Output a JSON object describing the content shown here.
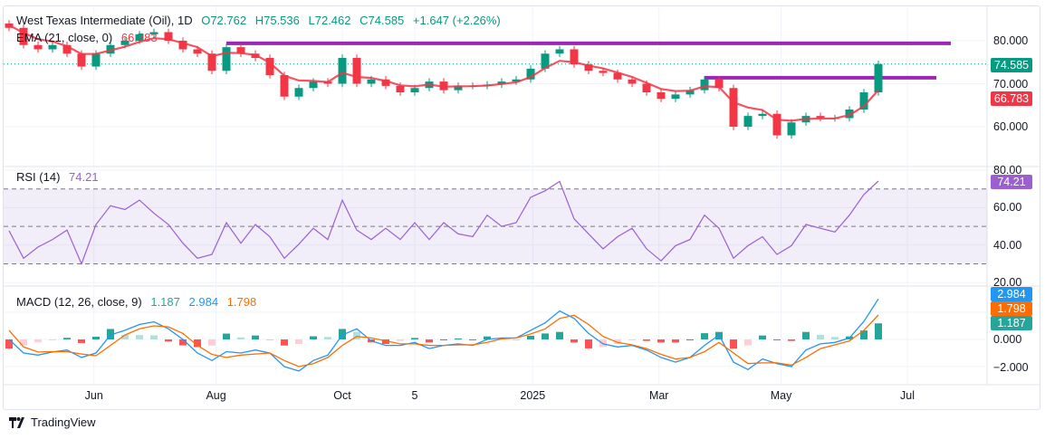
{
  "header": {
    "symbol": "West Texas Intermediate (Oil), 1D",
    "open": "O72.762",
    "high": "H75.536",
    "low": "L72.462",
    "close": "C74.585",
    "change": "+1.647 (+2.26%)"
  },
  "ema_legend": {
    "label": "EMA (21, close, 0)",
    "value": "66.783"
  },
  "rsi_legend": {
    "label": "RSI (14)",
    "value": "74.21"
  },
  "macd_legend": {
    "label": "MACD (12, 26, close, 9)",
    "hist": "1.187",
    "macd": "2.984",
    "signal": "1.798"
  },
  "price_axis": {
    "ticks": [
      "80.000",
      "70.000",
      "60.000"
    ],
    "last_price": "74.585",
    "ema_value": "66.783"
  },
  "rsi_axis": {
    "ticks": [
      "80.00",
      "60.00",
      "40.00",
      "20.00"
    ],
    "value": "74.21"
  },
  "macd_axis": {
    "ticks": [
      "0.000",
      "−2.000"
    ],
    "macd": "2.984",
    "signal": "1.798",
    "hist": "1.187"
  },
  "x_axis": {
    "labels": [
      "Jun",
      "Aug",
      "Oct",
      "5",
      "2025",
      "Mar",
      "May",
      "Jul"
    ]
  },
  "brand": "TradingView",
  "colors": {
    "up": "#089981",
    "down": "#F23645",
    "ema": "#F23645",
    "levels": "#9C27B0",
    "rsi": "#9C5FD0",
    "macd": "#2196F3",
    "signal": "#FF6D00",
    "hist_up": "#26A69A",
    "hist_down": "#FF5252"
  },
  "chart_data": {
    "type": "candlestick",
    "sampling": "weekly approximation of daily chart",
    "x": [
      "2024-04-23",
      "2024-04-30",
      "2024-05-07",
      "2024-05-14",
      "2024-05-21",
      "2024-05-28",
      "2024-06-04",
      "2024-06-11",
      "2024-06-18",
      "2024-06-25",
      "2024-07-02",
      "2024-07-09",
      "2024-07-16",
      "2024-07-23",
      "2024-07-30",
      "2024-08-06",
      "2024-08-13",
      "2024-08-20",
      "2024-08-27",
      "2024-09-03",
      "2024-09-10",
      "2024-09-17",
      "2024-09-24",
      "2024-10-01",
      "2024-10-08",
      "2024-10-15",
      "2024-10-22",
      "2024-10-29",
      "2024-11-05",
      "2024-11-12",
      "2024-11-19",
      "2024-11-26",
      "2024-12-03",
      "2024-12-10",
      "2024-12-17",
      "2024-12-24",
      "2024-12-31",
      "2025-01-07",
      "2025-01-14",
      "2025-01-21",
      "2025-01-28",
      "2025-02-04",
      "2025-02-11",
      "2025-02-18",
      "2025-02-25",
      "2025-03-04",
      "2025-03-11",
      "2025-03-18",
      "2025-03-25",
      "2025-04-01",
      "2025-04-08",
      "2025-04-15",
      "2025-04-22",
      "2025-04-29",
      "2025-05-06",
      "2025-05-13",
      "2025-05-20",
      "2025-05-27",
      "2025-06-03",
      "2025-06-10",
      "2025-06-17"
    ],
    "close": [
      83,
      79,
      78,
      79,
      77,
      74,
      77,
      79,
      80,
      81.5,
      82,
      80,
      78,
      77,
      73,
      78.5,
      77,
      76,
      72,
      67,
      69,
      70.5,
      70,
      76,
      70,
      71,
      69.5,
      68,
      69,
      70.5,
      68.5,
      69.5,
      69.5,
      69.8,
      70.5,
      71,
      73.5,
      77,
      78,
      74.5,
      73,
      72.5,
      71,
      70,
      68,
      66.5,
      67.5,
      68.5,
      71,
      69,
      60,
      62.5,
      63,
      58,
      61,
      62.5,
      62,
      62,
      64,
      68,
      74.585
    ],
    "ema_period": 21,
    "rsi": [
      47.7,
      33,
      39,
      43,
      48,
      30,
      51,
      61,
      59,
      64,
      57,
      51,
      41,
      33,
      35,
      52,
      41,
      51,
      44.5,
      33,
      40.5,
      49,
      43,
      64,
      48,
      43,
      49,
      43,
      52,
      43,
      52,
      46,
      44.5,
      56,
      50,
      52,
      65.5,
      69,
      74,
      54,
      46,
      38,
      44.5,
      49,
      38,
      31.6,
      39.7,
      43,
      56,
      49,
      33,
      39.7,
      44.5,
      35,
      39.7,
      51,
      49,
      47,
      56,
      67,
      74.21
    ],
    "macd": [
      0,
      -1.0,
      -1.15,
      -0.93,
      -0.78,
      -1.33,
      -1.0,
      0.33,
      0.67,
      1.1,
      1.3,
      0.78,
      0,
      -1.0,
      -1.55,
      -0.9,
      -1.0,
      -0.78,
      -1.0,
      -2.0,
      -2.33,
      -1.55,
      -1.15,
      0.33,
      0.78,
      -0.11,
      -0.44,
      -0.44,
      -0.22,
      -0.67,
      -0.44,
      -0.33,
      -0.44,
      0,
      0.11,
      0.11,
      0.67,
      1.22,
      2.1,
      1.55,
      0.44,
      -0.33,
      -0.55,
      -0.44,
      -0.78,
      -1.33,
      -1.67,
      -1.33,
      -0.44,
      0.33,
      -1.67,
      -2.22,
      -1.44,
      -1.78,
      -2.0,
      -0.78,
      -0.33,
      -0.22,
      0.11,
      1.33,
      2.984
    ],
    "signal": [
      0.67,
      -0.55,
      -0.93,
      -0.9,
      -0.9,
      -1.07,
      -1.2,
      -0.44,
      0.33,
      0.78,
      1.0,
      0.93,
      0.44,
      -0.44,
      -1.1,
      -1.33,
      -1.15,
      -1.07,
      -1.0,
      -1.55,
      -2.0,
      -1.78,
      -1.33,
      -0.44,
      0.22,
      0.11,
      -0.11,
      -0.33,
      -0.33,
      -0.44,
      -0.44,
      -0.4,
      -0.4,
      -0.22,
      0.04,
      0.11,
      0.4,
      0.78,
      1.55,
      1.78,
      1.1,
      0.22,
      -0.22,
      -0.4,
      -0.67,
      -1.1,
      -1.44,
      -1.33,
      -0.9,
      -0.22,
      -1.0,
      -1.78,
      -1.73,
      -1.73,
      -1.89,
      -1.33,
      -0.67,
      -0.4,
      -0.11,
      0.67,
      1.798
    ],
    "horizontal_levels": [
      {
        "price": 79.4,
        "from": "2024-08-06",
        "to": "2025-07-22"
      },
      {
        "price": 71.4,
        "from": "2025-03-25",
        "to": "2025-07-15"
      }
    ],
    "rsi_levels": [
      70,
      50,
      30
    ],
    "price_range": [
      53,
      87
    ],
    "rsi_range": [
      20,
      80
    ],
    "macd_range": [
      -3.3,
      3.4
    ],
    "x_tick_dates": [
      "2024-06-03",
      "2024-08-01",
      "2024-10-01",
      "2024-11-05",
      "2025-01-01",
      "2025-03-03",
      "2025-05-01",
      "2025-07-01"
    ]
  }
}
